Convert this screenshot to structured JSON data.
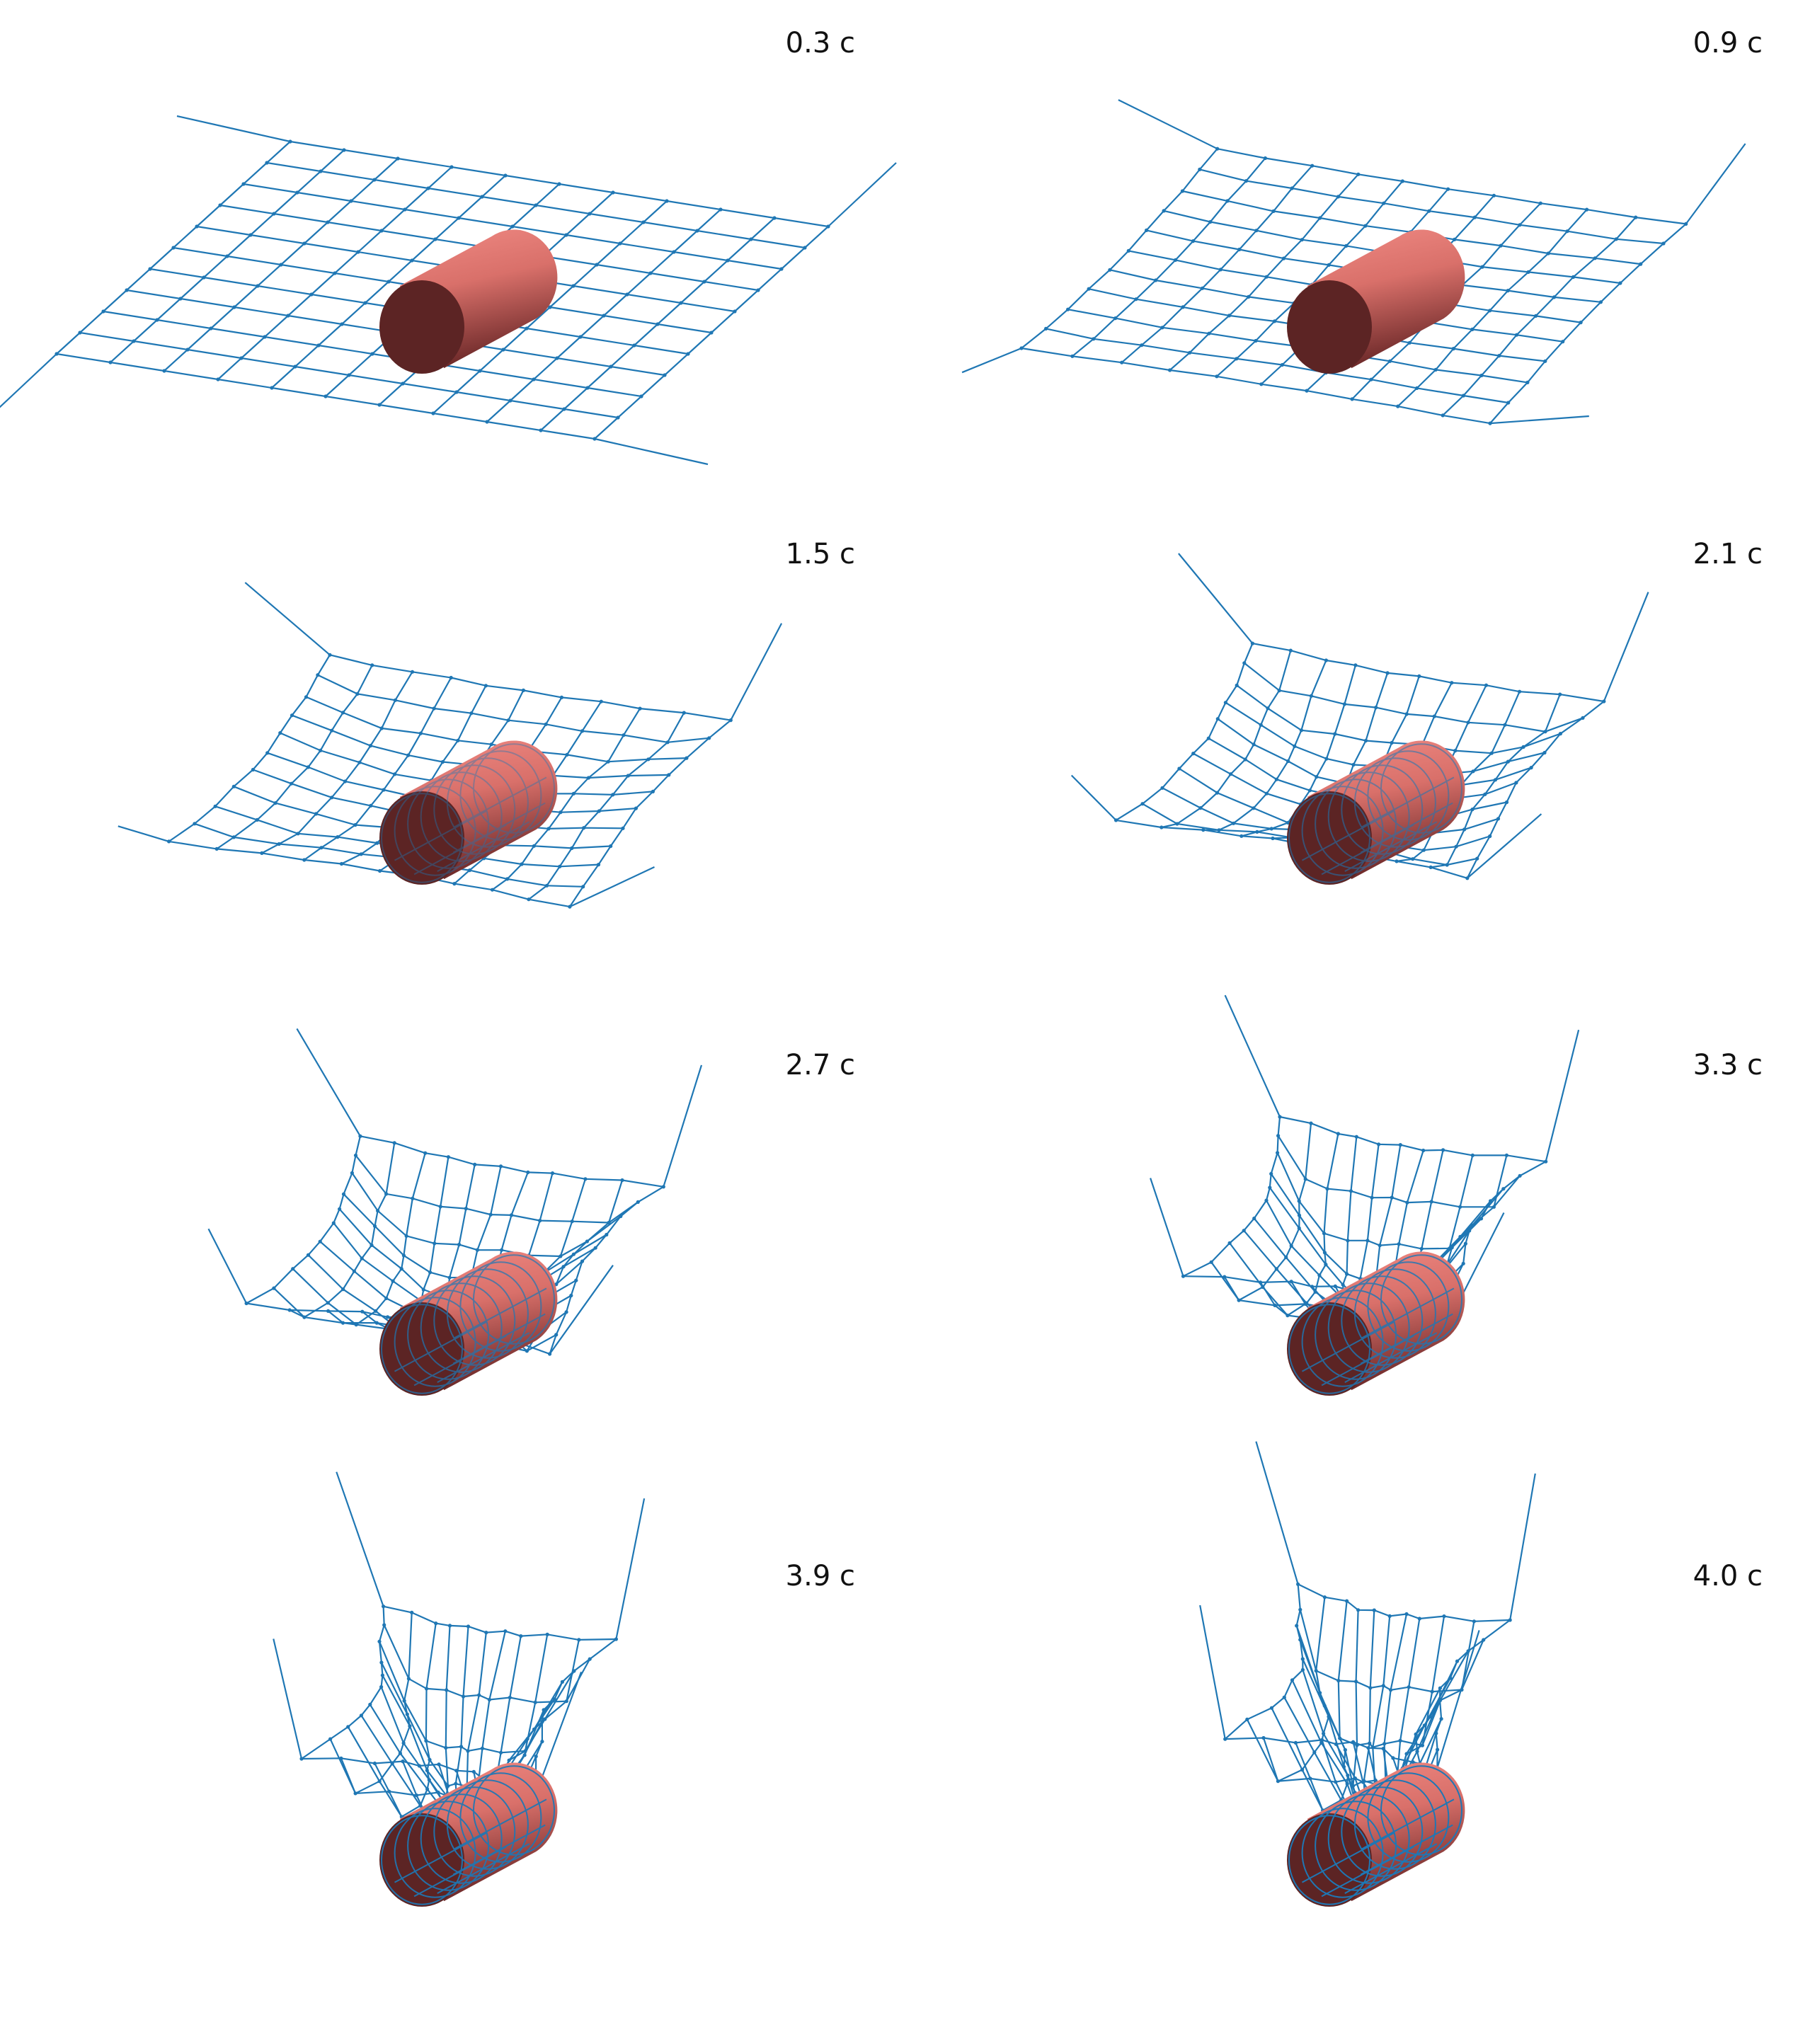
{
  "figure": {
    "panels": [
      {
        "time": "0.3 c",
        "deformation": 0.0
      },
      {
        "time": "0.9 c",
        "deformation": 0.2
      },
      {
        "time": "1.5 c",
        "deformation": 0.4
      },
      {
        "time": "2.1 c",
        "deformation": 0.55
      },
      {
        "time": "2.7 c",
        "deformation": 0.7
      },
      {
        "time": "3.3 c",
        "deformation": 0.82
      },
      {
        "time": "3.9 c",
        "deformation": 0.93
      },
      {
        "time": "4.0 c",
        "deformation": 1.0
      }
    ],
    "colors": {
      "net": "#1f77b4",
      "cylinder_light": "#f08a84",
      "cylinder_mid": "#d9706a",
      "cylinder_dark": "#6e2a2a",
      "cylinder_cap": "#5c2424",
      "label": "#111111"
    }
  }
}
